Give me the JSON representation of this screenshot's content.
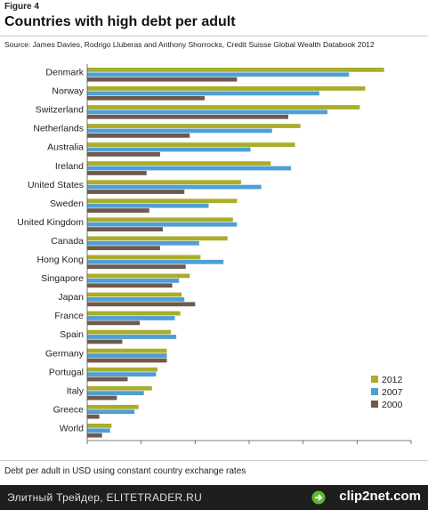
{
  "header": {
    "figure_label": "Figure 4",
    "title": "Countries with high debt per adult",
    "source": "Source: James Davies, Rodrigo Lluberas and Anthony Shorrocks, Credit Suisse Global Wealth Databook 2012"
  },
  "caption": "Debt per adult in USD using constant country exchange rates",
  "footer": {
    "site_text": "Элитный Трейдер, ELITETRADER.RU",
    "brand_text": "clip2net.com",
    "brand_icon": "arrow-logo-icon"
  },
  "colors": {
    "2012": "#a9ad2a",
    "2007": "#4f9fd6",
    "2000": "#6f5a4d"
  },
  "chart_data": {
    "type": "bar",
    "orientation": "horizontal",
    "categories": [
      "Denmark",
      "Norway",
      "Switzerland",
      "Netherlands",
      "Australia",
      "Ireland",
      "United States",
      "Sweden",
      "United Kingdom",
      "Canada",
      "Hong Kong",
      "Singapore",
      "Japan",
      "France",
      "Spain",
      "Germany",
      "Portugal",
      "Italy",
      "Greece",
      "World"
    ],
    "series": [
      {
        "name": "2012",
        "values": [
          110000,
          103000,
          101000,
          79000,
          77000,
          68000,
          57000,
          55500,
          54000,
          52000,
          42000,
          38000,
          35000,
          34500,
          31000,
          29500,
          26000,
          24000,
          19000,
          9000
        ]
      },
      {
        "name": "2007",
        "values": [
          97000,
          86000,
          89000,
          68500,
          60500,
          75500,
          64500,
          45000,
          55500,
          41500,
          50500,
          34000,
          36000,
          32500,
          33000,
          29500,
          25500,
          21000,
          17500,
          8500
        ]
      },
      {
        "name": "2000",
        "values": [
          55500,
          43500,
          74500,
          38000,
          27000,
          22000,
          36000,
          23000,
          28000,
          27000,
          36500,
          31500,
          40000,
          19500,
          13000,
          29500,
          15000,
          11000,
          4500,
          5500
        ]
      }
    ],
    "xlim": [
      0,
      120000
    ],
    "xticks": [
      "0",
      "20000",
      "40000",
      "60000",
      "80000",
      "100000",
      "120000"
    ],
    "legend_position": "bottom-right",
    "grid": false
  }
}
